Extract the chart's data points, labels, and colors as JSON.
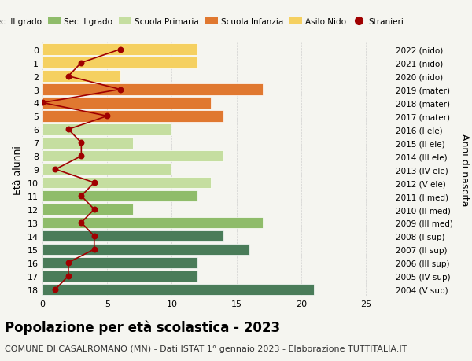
{
  "ages": [
    18,
    17,
    16,
    15,
    14,
    13,
    12,
    11,
    10,
    9,
    8,
    7,
    6,
    5,
    4,
    3,
    2,
    1,
    0
  ],
  "years": [
    "2004 (V sup)",
    "2005 (IV sup)",
    "2006 (III sup)",
    "2007 (II sup)",
    "2008 (I sup)",
    "2009 (III med)",
    "2010 (II med)",
    "2011 (I med)",
    "2012 (V ele)",
    "2013 (IV ele)",
    "2014 (III ele)",
    "2015 (II ele)",
    "2016 (I ele)",
    "2017 (mater)",
    "2018 (mater)",
    "2019 (mater)",
    "2020 (nido)",
    "2021 (nido)",
    "2022 (nido)"
  ],
  "bar_values": [
    21,
    12,
    12,
    16,
    14,
    17,
    7,
    12,
    13,
    10,
    14,
    7,
    10,
    14,
    13,
    17,
    6,
    12,
    12
  ],
  "bar_colors": [
    "#4a7c59",
    "#4a7c59",
    "#4a7c59",
    "#4a7c59",
    "#4a7c59",
    "#8fbc6a",
    "#8fbc6a",
    "#8fbc6a",
    "#c5dea0",
    "#c5dea0",
    "#c5dea0",
    "#c5dea0",
    "#c5dea0",
    "#e07830",
    "#e07830",
    "#e07830",
    "#f5d060",
    "#f5d060",
    "#f5d060"
  ],
  "stranieri_values": [
    1,
    2,
    2,
    4,
    4,
    3,
    4,
    3,
    4,
    1,
    3,
    3,
    2,
    5,
    0,
    6,
    2,
    3,
    6
  ],
  "stranieri_color": "#a00000",
  "title": "Popolazione per età scolastica - 2023",
  "subtitle": "COMUNE DI CASALROMANO (MN) - Dati ISTAT 1° gennaio 2023 - Elaborazione TUTTITALIA.IT",
  "ylabel_left": "Età alunni",
  "ylabel_right": "Anni di nascita",
  "xlim": [
    0,
    27
  ],
  "xticks": [
    0,
    5,
    10,
    15,
    20,
    25
  ],
  "legend_labels": [
    "Sec. II grado",
    "Sec. I grado",
    "Scuola Primaria",
    "Scuola Infanzia",
    "Asilo Nido",
    "Stranieri"
  ],
  "legend_colors": [
    "#4a7c59",
    "#8fbc6a",
    "#c5dea0",
    "#e07830",
    "#f5d060",
    "#a00000"
  ],
  "legend_marker": [
    false,
    false,
    false,
    false,
    false,
    true
  ],
  "bg_color": "#f5f5f0",
  "title_fontsize": 12,
  "subtitle_fontsize": 8
}
